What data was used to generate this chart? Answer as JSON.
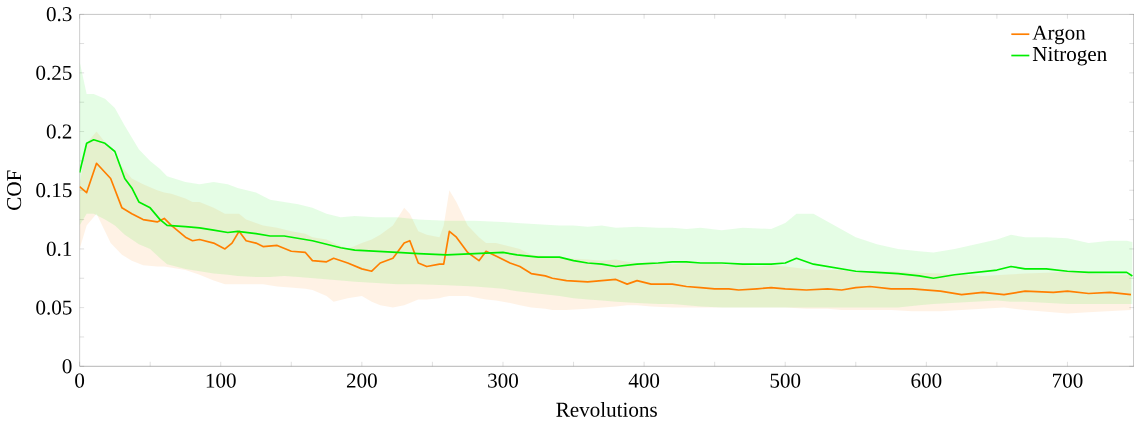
{
  "chart_data": {
    "type": "line",
    "xlabel": "Revolutions",
    "ylabel": "COF",
    "xlim": [
      0,
      747
    ],
    "ylim": [
      0,
      0.3
    ],
    "xticks": [
      0,
      {
        "value": 50,
        "label": null
      },
      100,
      {
        "value": 150,
        "label": null
      },
      200,
      {
        "value": 250,
        "label": null
      },
      300,
      {
        "value": 350,
        "label": null
      },
      400,
      {
        "value": 450,
        "label": null
      },
      500,
      {
        "value": 550,
        "label": null
      },
      600,
      {
        "value": 650,
        "label": null
      },
      700
    ],
    "yticks": [
      0,
      {
        "value": 0.025,
        "label": null
      },
      0.05,
      {
        "value": 0.075,
        "label": null
      },
      0.1,
      {
        "value": 0.125,
        "label": null
      },
      0.15,
      {
        "value": 0.175,
        "label": null
      },
      0.2,
      {
        "value": 0.225,
        "label": null
      },
      0.25,
      {
        "value": 0.275,
        "label": null
      },
      0.3
    ],
    "grid": false,
    "legend": "top right",
    "marker": "none",
    "line_style": "solid",
    "series": [
      {
        "name": "Argon",
        "color": "#ff7f00",
        "x": [
          0,
          5,
          12,
          22,
          30,
          37,
          45,
          55,
          60,
          65,
          75,
          80,
          85,
          95,
          103,
          108,
          113,
          118,
          125,
          130,
          140,
          150,
          160,
          165,
          175,
          180,
          190,
          200,
          207,
          213,
          222,
          230,
          234,
          240,
          246,
          255,
          258,
          262,
          267,
          275,
          283,
          288,
          295,
          305,
          312,
          320,
          330,
          335,
          345,
          360,
          370,
          380,
          388,
          395,
          405,
          420,
          430,
          440,
          450,
          460,
          467,
          480,
          490,
          500,
          515,
          530,
          540,
          550,
          560,
          575,
          590,
          610,
          625,
          640,
          655,
          670,
          690,
          700,
          715,
          730,
          745
        ],
        "values": [
          0.153,
          0.148,
          0.173,
          0.16,
          0.135,
          0.13,
          0.125,
          0.123,
          0.126,
          0.12,
          0.11,
          0.107,
          0.108,
          0.105,
          0.1,
          0.105,
          0.115,
          0.107,
          0.105,
          0.102,
          0.103,
          0.098,
          0.097,
          0.09,
          0.089,
          0.092,
          0.088,
          0.083,
          0.081,
          0.088,
          0.092,
          0.105,
          0.107,
          0.088,
          0.085,
          0.087,
          0.087,
          0.115,
          0.11,
          0.097,
          0.09,
          0.098,
          0.094,
          0.088,
          0.085,
          0.079,
          0.077,
          0.075,
          0.073,
          0.072,
          0.073,
          0.074,
          0.07,
          0.073,
          0.07,
          0.07,
          0.068,
          0.067,
          0.066,
          0.066,
          0.065,
          0.066,
          0.067,
          0.066,
          0.065,
          0.066,
          0.065,
          0.067,
          0.068,
          0.066,
          0.066,
          0.064,
          0.061,
          0.063,
          0.061,
          0.064,
          0.063,
          0.064,
          0.062,
          0.063,
          0.061
        ],
        "lower": [
          0.1,
          0.12,
          0.13,
          0.105,
          0.095,
          0.09,
          0.086,
          0.085,
          0.085,
          0.084,
          0.082,
          0.08,
          0.078,
          0.073,
          0.07,
          0.07,
          0.07,
          0.07,
          0.07,
          0.07,
          0.068,
          0.067,
          0.066,
          0.065,
          0.06,
          0.055,
          0.058,
          0.06,
          0.055,
          0.052,
          0.05,
          0.052,
          0.054,
          0.057,
          0.057,
          0.058,
          0.059,
          0.06,
          0.06,
          0.06,
          0.058,
          0.057,
          0.056,
          0.054,
          0.052,
          0.05,
          0.049,
          0.048,
          0.048,
          0.049,
          0.05,
          0.051,
          0.052,
          0.052,
          0.051,
          0.05,
          0.05,
          0.05,
          0.05,
          0.05,
          0.05,
          0.05,
          0.05,
          0.05,
          0.049,
          0.049,
          0.048,
          0.048,
          0.048,
          0.048,
          0.047,
          0.047,
          0.048,
          0.049,
          0.05,
          0.048,
          0.046,
          0.045,
          0.046,
          0.047,
          0.048
        ],
        "upper": [
          0.155,
          0.19,
          0.2,
          0.185,
          0.17,
          0.16,
          0.155,
          0.15,
          0.148,
          0.147,
          0.143,
          0.14,
          0.14,
          0.135,
          0.13,
          0.13,
          0.13,
          0.125,
          0.122,
          0.12,
          0.118,
          0.115,
          0.113,
          0.11,
          0.108,
          0.105,
          0.1,
          0.105,
          0.108,
          0.112,
          0.12,
          0.135,
          0.13,
          0.115,
          0.112,
          0.11,
          0.12,
          0.15,
          0.14,
          0.12,
          0.11,
          0.105,
          0.105,
          0.102,
          0.1,
          0.095,
          0.094,
          0.093,
          0.092,
          0.091,
          0.09,
          0.091,
          0.089,
          0.088,
          0.089,
          0.087,
          0.088,
          0.087,
          0.088,
          0.086,
          0.087,
          0.085,
          0.086,
          0.085,
          0.083,
          0.082,
          0.082,
          0.08,
          0.081,
          0.081,
          0.08,
          0.079,
          0.078,
          0.077,
          0.078,
          0.079,
          0.08,
          0.081,
          0.079,
          0.078,
          0.078
        ]
      },
      {
        "name": "Nitrogen",
        "color": "#00ee00",
        "x": [
          0,
          5,
          10,
          18,
          25,
          32,
          37,
          42,
          50,
          57,
          62,
          75,
          85,
          95,
          105,
          112,
          125,
          135,
          145,
          155,
          165,
          175,
          185,
          195,
          210,
          225,
          240,
          260,
          280,
          300,
          310,
          325,
          340,
          350,
          360,
          370,
          380,
          395,
          410,
          420,
          430,
          440,
          455,
          470,
          490,
          500,
          508,
          520,
          535,
          550,
          565,
          580,
          595,
          605,
          620,
          635,
          650,
          660,
          670,
          685,
          700,
          715,
          730,
          742,
          746
        ],
        "values": [
          0.165,
          0.19,
          0.193,
          0.19,
          0.183,
          0.16,
          0.152,
          0.14,
          0.135,
          0.125,
          0.12,
          0.119,
          0.118,
          0.116,
          0.114,
          0.115,
          0.113,
          0.111,
          0.111,
          0.109,
          0.107,
          0.104,
          0.101,
          0.099,
          0.098,
          0.097,
          0.096,
          0.095,
          0.096,
          0.097,
          0.095,
          0.093,
          0.093,
          0.09,
          0.088,
          0.087,
          0.085,
          0.087,
          0.088,
          0.089,
          0.089,
          0.088,
          0.088,
          0.087,
          0.087,
          0.088,
          0.092,
          0.087,
          0.084,
          0.081,
          0.08,
          0.079,
          0.077,
          0.075,
          0.078,
          0.08,
          0.082,
          0.085,
          0.083,
          0.083,
          0.081,
          0.08,
          0.08,
          0.08,
          0.077
        ],
        "lower": [
          0.12,
          0.13,
          0.13,
          0.125,
          0.12,
          0.112,
          0.108,
          0.104,
          0.1,
          0.092,
          0.087,
          0.083,
          0.081,
          0.079,
          0.078,
          0.077,
          0.076,
          0.076,
          0.077,
          0.076,
          0.075,
          0.074,
          0.073,
          0.072,
          0.071,
          0.07,
          0.07,
          0.069,
          0.068,
          0.066,
          0.064,
          0.062,
          0.06,
          0.058,
          0.057,
          0.056,
          0.055,
          0.054,
          0.053,
          0.053,
          0.052,
          0.051,
          0.05,
          0.05,
          0.05,
          0.05,
          0.05,
          0.05,
          0.05,
          0.05,
          0.05,
          0.05,
          0.052,
          0.053,
          0.054,
          0.055,
          0.056,
          0.055,
          0.055,
          0.054,
          0.053,
          0.053,
          0.053,
          0.053,
          0.053
        ],
        "upper": [
          0.26,
          0.232,
          0.232,
          0.228,
          0.22,
          0.205,
          0.195,
          0.185,
          0.175,
          0.168,
          0.162,
          0.157,
          0.155,
          0.157,
          0.155,
          0.152,
          0.148,
          0.142,
          0.14,
          0.138,
          0.135,
          0.13,
          0.127,
          0.128,
          0.127,
          0.127,
          0.125,
          0.124,
          0.124,
          0.123,
          0.122,
          0.121,
          0.12,
          0.12,
          0.119,
          0.12,
          0.118,
          0.119,
          0.118,
          0.118,
          0.117,
          0.118,
          0.116,
          0.118,
          0.117,
          0.122,
          0.13,
          0.13,
          0.12,
          0.11,
          0.104,
          0.1,
          0.098,
          0.097,
          0.1,
          0.104,
          0.108,
          0.112,
          0.11,
          0.11,
          0.109,
          0.105,
          0.107,
          0.107,
          0.106
        ]
      }
    ]
  }
}
